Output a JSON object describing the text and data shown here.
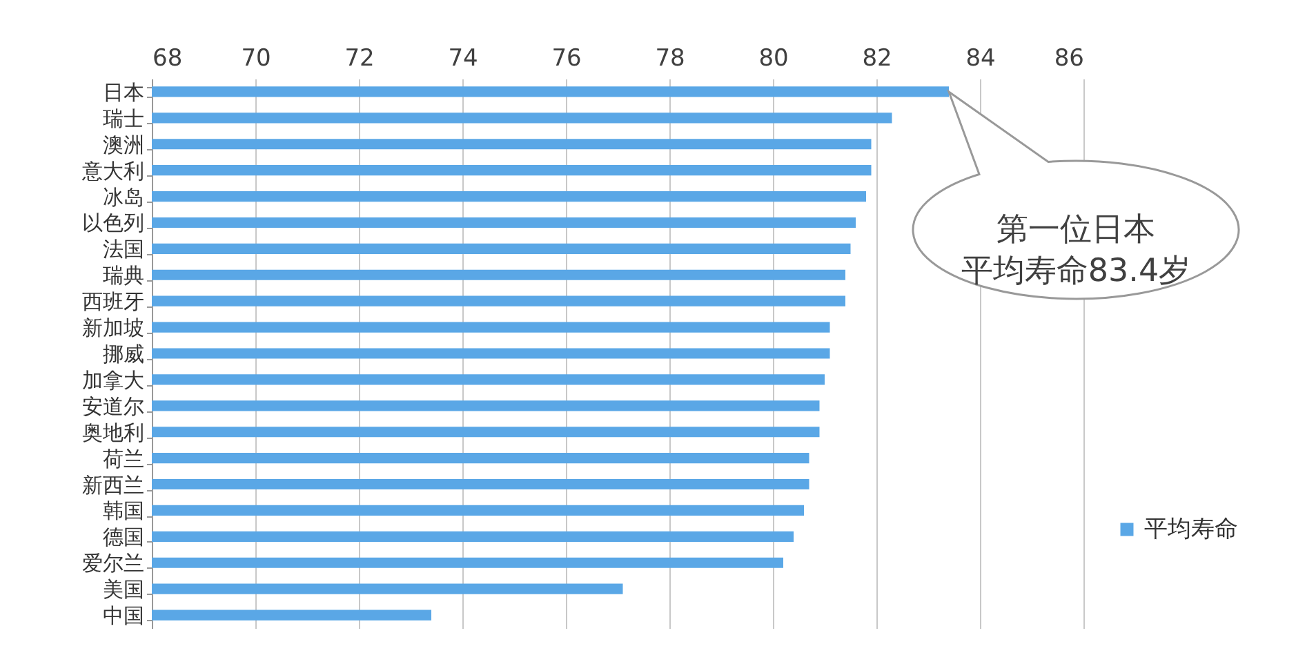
{
  "chart_data": {
    "type": "bar",
    "orientation": "horizontal",
    "categories": [
      "日本",
      "瑞士",
      "澳洲",
      "意大利",
      "冰岛",
      "以色列",
      "法国",
      "瑞典",
      "西班牙",
      "新加坡",
      "挪威",
      "加拿大",
      "安道尔",
      "奥地利",
      "荷兰",
      "新西兰",
      "韩国",
      "德国",
      "爱尔兰",
      "美国",
      "中国"
    ],
    "series": [
      {
        "name": "平均寿命",
        "color": "#5aa7e6",
        "values": [
          83.4,
          82.3,
          81.9,
          81.9,
          81.8,
          81.6,
          81.5,
          81.4,
          81.4,
          81.1,
          81.1,
          81.0,
          80.9,
          80.9,
          80.7,
          80.7,
          80.6,
          80.4,
          80.2,
          77.1,
          73.4
        ]
      }
    ],
    "xlim": [
      68,
      86
    ],
    "xticks": [
      68,
      70,
      72,
      74,
      76,
      78,
      80,
      82,
      84,
      86
    ],
    "grid": "x",
    "legend": "right",
    "annotations": [
      "第一位日本平均寿命83.4岁"
    ]
  }
}
